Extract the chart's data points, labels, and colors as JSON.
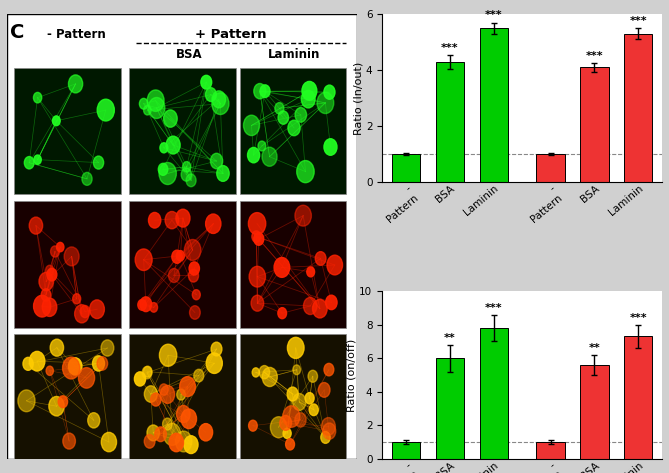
{
  "top_chart": {
    "values": [
      1.0,
      4.3,
      5.5,
      1.0,
      4.1,
      5.3
    ],
    "errors": [
      0.05,
      0.25,
      0.2,
      0.05,
      0.15,
      0.2
    ],
    "colors": [
      "#00cc00",
      "#00cc00",
      "#00cc00",
      "#ee3333",
      "#ee3333",
      "#ee3333"
    ],
    "ylabel": "Ratio (In/out)",
    "ylim": [
      0,
      6
    ],
    "yticks": [
      0,
      2,
      4,
      6
    ],
    "significance": [
      "",
      "***",
      "***",
      "",
      "***",
      "***"
    ],
    "dashed_line_y": 1.0
  },
  "bottom_chart": {
    "values": [
      1.0,
      6.0,
      7.8,
      1.0,
      5.6,
      7.3
    ],
    "errors": [
      0.1,
      0.8,
      0.8,
      0.1,
      0.6,
      0.7
    ],
    "colors": [
      "#00cc00",
      "#00cc00",
      "#00cc00",
      "#ee3333",
      "#ee3333",
      "#ee3333"
    ],
    "ylabel": "Ratio (on/off)",
    "ylim": [
      0,
      10
    ],
    "yticks": [
      0,
      2,
      4,
      6,
      8,
      10
    ],
    "significance": [
      "",
      "**",
      "***",
      "",
      "**",
      "***"
    ],
    "dashed_line_y": 1.0
  },
  "panel_label": "C",
  "plus_pattern_label": "+ Pattern",
  "minus_pattern_label": "- Pattern",
  "bsa_label": "BSA",
  "laminin_label": "Laminin",
  "fig_bg_color": "#d0d0d0",
  "bar_width": 0.65,
  "sig_fontsize": 8,
  "ylabel_fontsize": 8,
  "tick_fontsize": 7.5
}
